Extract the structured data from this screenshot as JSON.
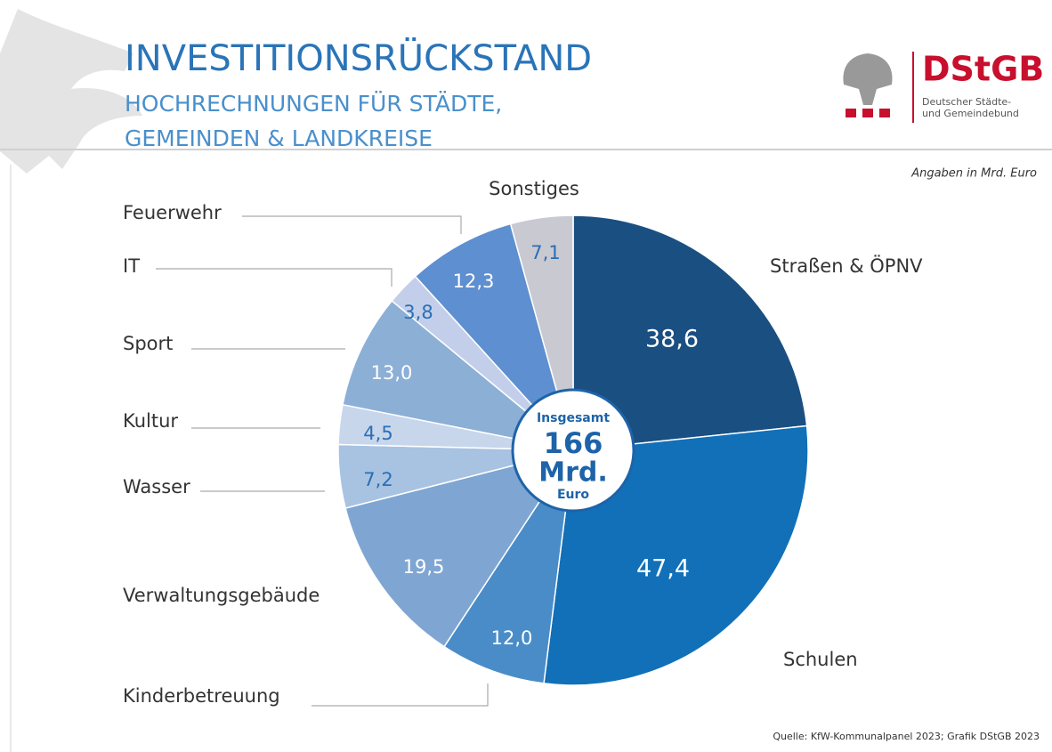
{
  "chart_data": {
    "type": "pie",
    "title": "INVESTITIONSRÜCKSTAND",
    "subtitle": [
      "HOCHRECHNUNGEN FÜR STÄDTE,",
      "GEMEINDEN & LANDKREISE"
    ],
    "note": "Angaben in Mrd. Euro",
    "source": "Quelle: KfW-Kommunalpanel 2023; Grafik DStGB 2023",
    "logo": {
      "name": "DStGB",
      "lines": [
        "Deutscher Städte-",
        "und Gemeindebund"
      ]
    },
    "center_label": [
      "Insgesamt",
      "166",
      "Mrd.",
      "Euro"
    ],
    "categories": [
      "Straßen & ÖPNV",
      "Schulen",
      "Kinderbetreuung",
      "Verwaltungsgebäude",
      "Wasser",
      "Kultur",
      "Sport",
      "IT",
      "Feuerwehr",
      "Sonstiges"
    ],
    "values": [
      38.6,
      47.4,
      12.0,
      19.5,
      7.2,
      4.5,
      13.0,
      3.8,
      12.3,
      7.1
    ],
    "value_labels": [
      "38,6",
      "47,4",
      "12,0",
      "19,5",
      "7,2",
      "4,5",
      "13,0",
      "3,8",
      "12,3",
      "7,1"
    ],
    "colors": [
      "#1a4f82",
      "#1170b8",
      "#4a8cc8",
      "#7fa6d2",
      "#a8c2e2",
      "#c8d6ec",
      "#8cafd6",
      "#c3cfea",
      "#5e8fd0",
      "#c9c9d2"
    ],
    "label_colors": [
      "#ffffff",
      "#ffffff",
      "#ffffff",
      "#ffffff",
      "#2a6fb5",
      "#2a6fb5",
      "#ffffff",
      "#2a6fb5",
      "#ffffff",
      "#2a6fb5"
    ]
  }
}
